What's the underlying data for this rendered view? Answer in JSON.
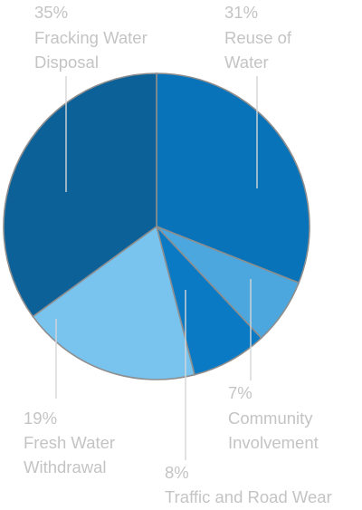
{
  "chart_data": {
    "type": "pie",
    "title": "",
    "legend": "none",
    "slices": [
      {
        "label_line1": "Reuse of",
        "label_line2": "Water",
        "value": 31,
        "value_label": "31%",
        "color": "#0873b9"
      },
      {
        "label_line1": "Community",
        "label_line2": "Involvement",
        "value": 7,
        "value_label": "7%",
        "color": "#4ba7dd"
      },
      {
        "label_line1": "Traffic and Road Wear",
        "label_line2": "",
        "value": 8,
        "value_label": "8%",
        "color": "#0b7ac4"
      },
      {
        "label_line1": "Fresh Water",
        "label_line2": "Withdrawal",
        "value": 19,
        "value_label": "19%",
        "color": "#78c4ef"
      },
      {
        "label_line1": "Fracking Water",
        "label_line2": "Disposal",
        "value": 35,
        "value_label": "35%",
        "color": "#0d6199"
      }
    ]
  }
}
